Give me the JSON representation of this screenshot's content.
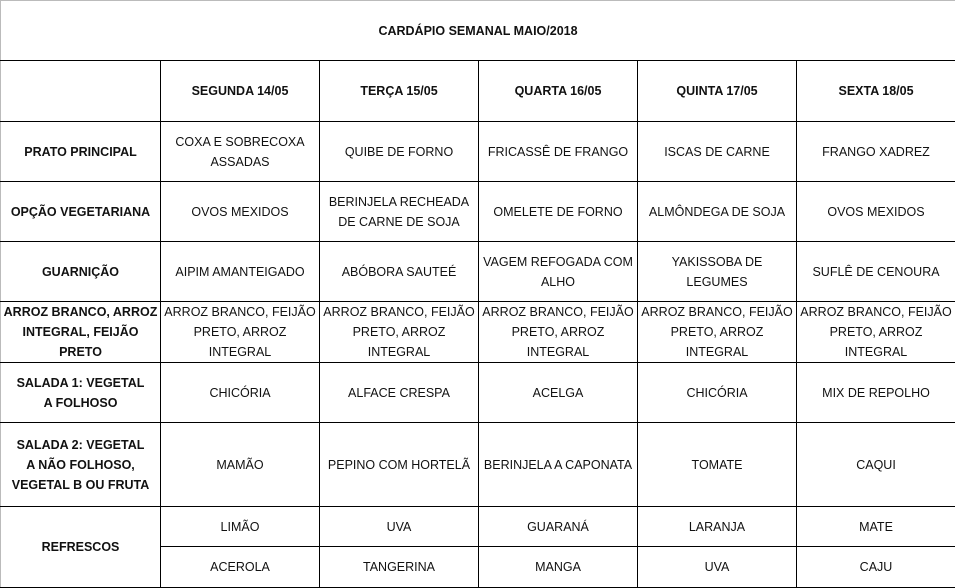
{
  "title": "CARDÁPIO SEMANAL MAIO/2018",
  "days": [
    "SEGUNDA  14/05",
    "TERÇA 15/05",
    "QUARTA 16/05",
    "QUINTA 17/05",
    "SEXTA 18/05"
  ],
  "rows": [
    {
      "label": "PRATO PRINCIPAL",
      "cells": [
        "COXA E SOBRECOXA ASSADAS",
        "QUIBE DE FORNO",
        "FRICASSÊ DE FRANGO",
        "ISCAS DE CARNE",
        "FRANGO XADREZ"
      ]
    },
    {
      "label": "OPÇÃO VEGETARIANA",
      "cells": [
        "OVOS MEXIDOS",
        "BERINJELA RECHEADA DE CARNE DE SOJA",
        "OMELETE DE FORNO",
        "ALMÔNDEGA DE SOJA",
        "OVOS MEXIDOS"
      ]
    },
    {
      "label": "GUARNIÇÃO",
      "cells": [
        "AIPIM AMANTEIGADO",
        "ABÓBORA SAUTEÉ",
        "VAGEM REFOGADA COM ALHO",
        "YAKISSOBA DE LEGUMES",
        "SUFLÊ DE CENOURA"
      ]
    },
    {
      "label": "ARROZ BRANCO, ARROZ INTEGRAL, FEIJÃO PRETO",
      "cells": [
        "ARROZ BRANCO, FEIJÃO PRETO, ARROZ INTEGRAL",
        "ARROZ BRANCO, FEIJÃO PRETO, ARROZ INTEGRAL",
        "ARROZ BRANCO, FEIJÃO PRETO, ARROZ INTEGRAL",
        "ARROZ BRANCO, FEIJÃO PRETO, ARROZ INTEGRAL",
        "ARROZ BRANCO, FEIJÃO PRETO, ARROZ INTEGRAL"
      ]
    },
    {
      "label": "SALADA 1: VEGETAL A FOLHOSO",
      "cells": [
        "CHICÓRIA",
        "ALFACE CRESPA",
        "ACELGA",
        "CHICÓRIA",
        "MIX DE REPOLHO"
      ]
    },
    {
      "label": "SALADA 2: VEGETAL A NÃO FOLHOSO, VEGETAL B OU FRUTA",
      "cells": [
        "MAMÃO",
        "PEPINO COM HORTELÃ",
        "BERINJELA A CAPONATA",
        "TOMATE",
        "CAQUI"
      ]
    }
  ],
  "refrescos": {
    "label": "REFRESCOS",
    "row1": [
      "LIMÃO",
      "UVA",
      "GUARANÁ",
      "LARANJA",
      "MATE"
    ],
    "row2": [
      "ACEROLA",
      "TANGERINA",
      "MANGA",
      "UVA",
      "CAJU"
    ]
  }
}
